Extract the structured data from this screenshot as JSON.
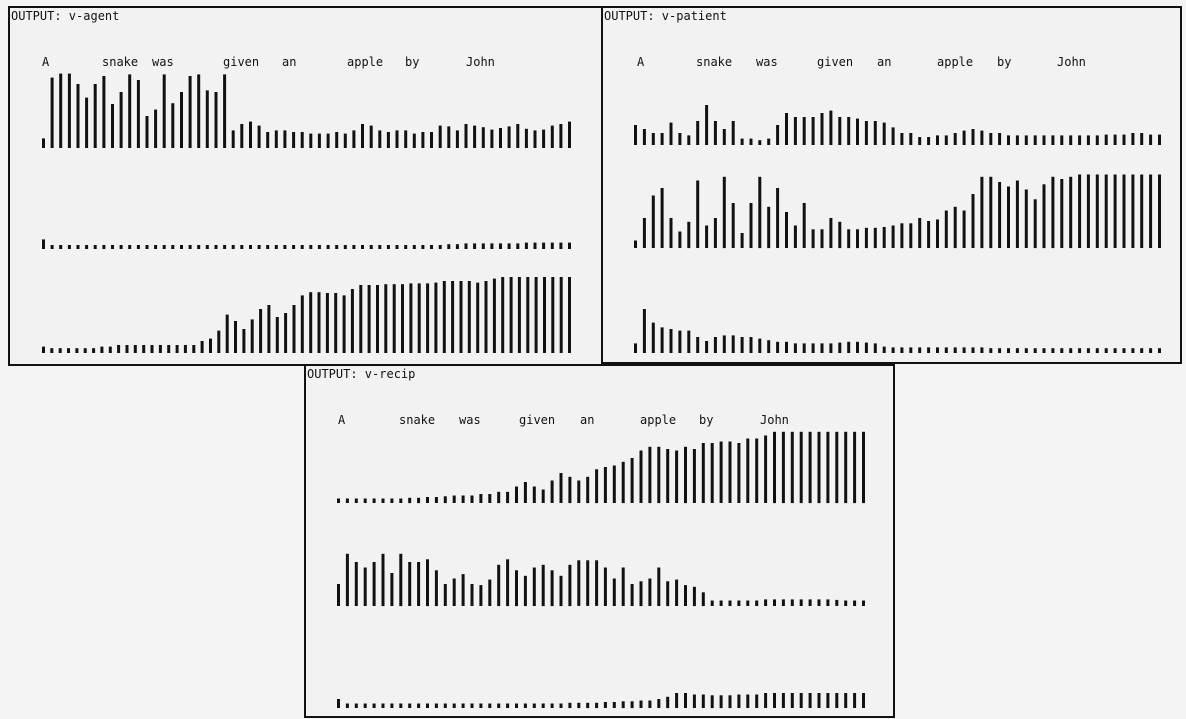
{
  "chart_data": [
    {
      "type": "bar",
      "title": "OUTPUT: v-agent",
      "words": [
        "A",
        "snake",
        "was",
        "given",
        "an",
        "apple",
        "by",
        "John"
      ],
      "y_range": [
        0,
        1
      ],
      "series": [
        {
          "values": [
            0.12,
            0.88,
            0.93,
            0.93,
            0.8,
            0.63,
            0.8,
            0.9,
            0.55,
            0.7,
            0.92,
            0.85,
            0.4,
            0.48,
            0.92,
            0.56,
            0.7,
            0.9,
            0.92,
            0.72,
            0.7,
            0.92,
            0.22,
            0.3,
            0.33,
            0.28,
            0.2,
            0.22,
            0.22,
            0.2,
            0.2,
            0.18,
            0.18,
            0.18,
            0.2,
            0.18,
            0.22,
            0.3,
            0.28,
            0.22,
            0.2,
            0.22,
            0.22,
            0.18,
            0.2,
            0.2,
            0.28,
            0.27,
            0.22,
            0.3,
            0.28,
            0.26,
            0.23,
            0.25,
            0.27,
            0.3,
            0.24,
            0.22,
            0.23,
            0.28,
            0.3,
            0.33
          ]
        },
        {
          "values": [
            0.12,
            0.05,
            0.05,
            0.05,
            0.05,
            0.05,
            0.05,
            0.05,
            0.05,
            0.05,
            0.05,
            0.05,
            0.05,
            0.05,
            0.05,
            0.05,
            0.05,
            0.05,
            0.05,
            0.05,
            0.05,
            0.05,
            0.05,
            0.05,
            0.05,
            0.05,
            0.05,
            0.05,
            0.05,
            0.05,
            0.05,
            0.05,
            0.05,
            0.05,
            0.05,
            0.05,
            0.05,
            0.05,
            0.05,
            0.05,
            0.05,
            0.05,
            0.05,
            0.05,
            0.05,
            0.05,
            0.05,
            0.06,
            0.06,
            0.07,
            0.07,
            0.07,
            0.07,
            0.07,
            0.07,
            0.07,
            0.08,
            0.08,
            0.08,
            0.08,
            0.08,
            0.08
          ]
        },
        {
          "values": [
            0.08,
            0.06,
            0.06,
            0.06,
            0.06,
            0.06,
            0.06,
            0.08,
            0.08,
            0.1,
            0.1,
            0.1,
            0.1,
            0.1,
            0.1,
            0.1,
            0.1,
            0.1,
            0.1,
            0.15,
            0.18,
            0.28,
            0.48,
            0.4,
            0.3,
            0.42,
            0.55,
            0.6,
            0.45,
            0.5,
            0.6,
            0.72,
            0.76,
            0.76,
            0.75,
            0.75,
            0.72,
            0.8,
            0.85,
            0.85,
            0.85,
            0.86,
            0.86,
            0.86,
            0.87,
            0.87,
            0.87,
            0.88,
            0.9,
            0.9,
            0.9,
            0.9,
            0.88,
            0.9,
            0.93,
            0.95,
            0.95,
            0.95,
            0.95,
            0.95,
            0.95,
            0.95,
            0.95,
            0.95
          ]
        }
      ]
    },
    {
      "type": "bar",
      "title": "OUTPUT: v-patient",
      "words": [
        "A",
        "snake",
        "was",
        "given",
        "an",
        "apple",
        "by",
        "John"
      ],
      "y_range": [
        0,
        1
      ],
      "series": [
        {
          "values": [
            0.25,
            0.2,
            0.15,
            0.15,
            0.28,
            0.15,
            0.12,
            0.3,
            0.5,
            0.3,
            0.2,
            0.3,
            0.08,
            0.08,
            0.06,
            0.08,
            0.25,
            0.4,
            0.35,
            0.35,
            0.35,
            0.4,
            0.43,
            0.35,
            0.35,
            0.33,
            0.3,
            0.3,
            0.28,
            0.22,
            0.15,
            0.15,
            0.1,
            0.1,
            0.12,
            0.12,
            0.15,
            0.18,
            0.2,
            0.18,
            0.15,
            0.15,
            0.12,
            0.12,
            0.12,
            0.12,
            0.12,
            0.12,
            0.12,
            0.12,
            0.12,
            0.12,
            0.12,
            0.13,
            0.13,
            0.13,
            0.15,
            0.15,
            0.13,
            0.13
          ]
        },
        {
          "values": [
            0.1,
            0.4,
            0.7,
            0.8,
            0.4,
            0.22,
            0.35,
            0.9,
            0.3,
            0.4,
            0.95,
            0.6,
            0.2,
            0.6,
            0.95,
            0.55,
            0.8,
            0.48,
            0.3,
            0.6,
            0.25,
            0.25,
            0.4,
            0.35,
            0.25,
            0.25,
            0.27,
            0.27,
            0.28,
            0.3,
            0.33,
            0.33,
            0.4,
            0.36,
            0.38,
            0.5,
            0.55,
            0.5,
            0.72,
            0.95,
            0.95,
            0.88,
            0.82,
            0.9,
            0.78,
            0.65,
            0.85,
            0.95,
            0.92,
            0.95,
            0.98,
            0.98,
            0.98,
            0.98,
            0.98,
            0.98,
            0.98,
            0.98,
            0.98,
            0.98
          ]
        },
        {
          "values": [
            0.12,
            0.55,
            0.38,
            0.32,
            0.3,
            0.28,
            0.28,
            0.2,
            0.15,
            0.2,
            0.22,
            0.22,
            0.2,
            0.2,
            0.18,
            0.16,
            0.14,
            0.14,
            0.12,
            0.12,
            0.12,
            0.12,
            0.12,
            0.13,
            0.14,
            0.14,
            0.13,
            0.12,
            0.08,
            0.07,
            0.07,
            0.07,
            0.07,
            0.07,
            0.07,
            0.07,
            0.07,
            0.07,
            0.07,
            0.07,
            0.06,
            0.06,
            0.06,
            0.06,
            0.06,
            0.06,
            0.06,
            0.06,
            0.06,
            0.06,
            0.06,
            0.06,
            0.06,
            0.06,
            0.06,
            0.06,
            0.06,
            0.06,
            0.06,
            0.06
          ]
        }
      ]
    },
    {
      "type": "bar",
      "title": "OUTPUT: v-recip",
      "words": [
        "A",
        "snake",
        "was",
        "given",
        "an",
        "apple",
        "by",
        "John"
      ],
      "y_range": [
        0,
        1
      ],
      "series": [
        {
          "values": [
            0.06,
            0.06,
            0.06,
            0.06,
            0.06,
            0.06,
            0.06,
            0.06,
            0.07,
            0.07,
            0.08,
            0.08,
            0.09,
            0.1,
            0.1,
            0.1,
            0.12,
            0.12,
            0.15,
            0.15,
            0.22,
            0.28,
            0.22,
            0.18,
            0.3,
            0.4,
            0.35,
            0.3,
            0.35,
            0.45,
            0.48,
            0.5,
            0.55,
            0.6,
            0.7,
            0.75,
            0.75,
            0.72,
            0.7,
            0.75,
            0.72,
            0.8,
            0.8,
            0.82,
            0.82,
            0.8,
            0.86,
            0.86,
            0.9,
            0.95,
            0.95,
            0.95,
            0.95,
            0.95,
            0.95,
            0.95,
            0.95,
            0.95,
            0.95,
            0.95
          ]
        },
        {
          "values": [
            0.4,
            0.95,
            0.8,
            0.7,
            0.8,
            0.95,
            0.6,
            0.95,
            0.8,
            0.8,
            0.85,
            0.65,
            0.4,
            0.5,
            0.58,
            0.4,
            0.38,
            0.48,
            0.75,
            0.85,
            0.65,
            0.55,
            0.7,
            0.75,
            0.65,
            0.55,
            0.75,
            0.83,
            0.83,
            0.83,
            0.7,
            0.5,
            0.7,
            0.4,
            0.45,
            0.5,
            0.7,
            0.45,
            0.48,
            0.38,
            0.35,
            0.25,
            0.1,
            0.1,
            0.1,
            0.1,
            0.1,
            0.1,
            0.12,
            0.12,
            0.12,
            0.12,
            0.12,
            0.12,
            0.12,
            0.12,
            0.11,
            0.1,
            0.1,
            0.1
          ]
        },
        {
          "values": [
            0.12,
            0.06,
            0.06,
            0.06,
            0.06,
            0.06,
            0.06,
            0.06,
            0.06,
            0.06,
            0.06,
            0.06,
            0.06,
            0.06,
            0.06,
            0.06,
            0.06,
            0.06,
            0.06,
            0.06,
            0.06,
            0.06,
            0.06,
            0.06,
            0.06,
            0.06,
            0.07,
            0.07,
            0.07,
            0.07,
            0.08,
            0.08,
            0.09,
            0.09,
            0.1,
            0.1,
            0.12,
            0.15,
            0.2,
            0.2,
            0.18,
            0.18,
            0.17,
            0.17,
            0.17,
            0.18,
            0.18,
            0.18,
            0.2,
            0.2,
            0.2,
            0.2,
            0.2,
            0.2,
            0.2,
            0.2,
            0.2,
            0.2,
            0.2,
            0.2
          ]
        }
      ]
    }
  ]
}
